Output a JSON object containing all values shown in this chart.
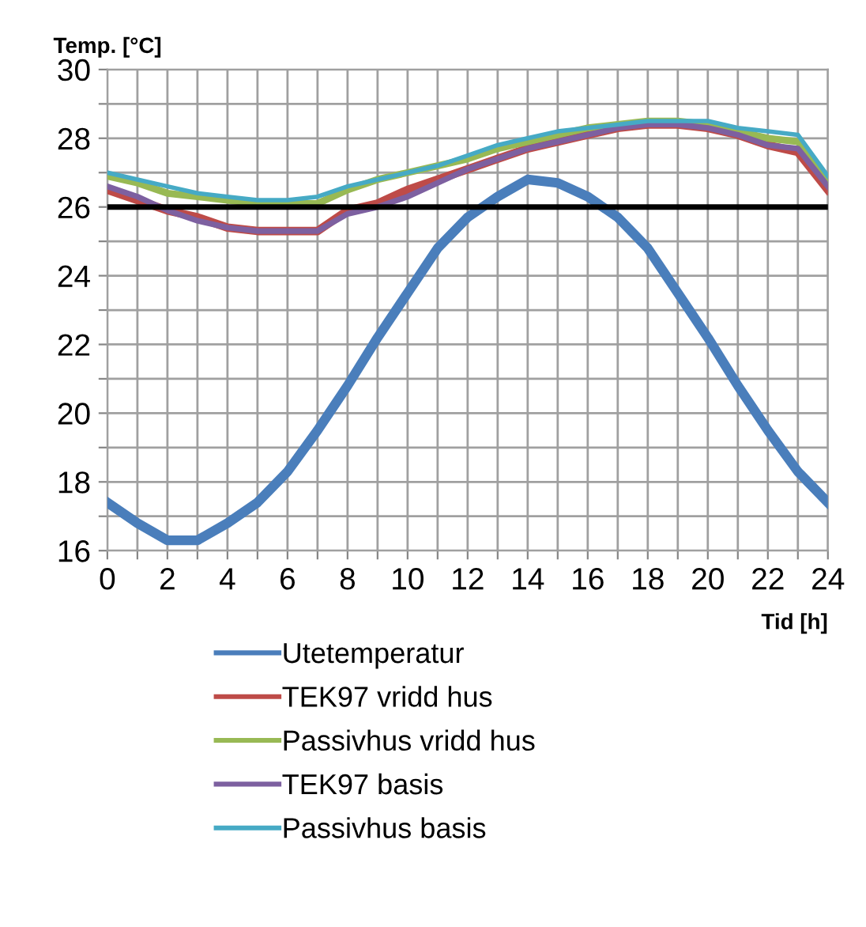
{
  "chart_data": {
    "type": "line",
    "ylabel": "Temp. [°C]",
    "xlabel": "Tid [h]",
    "x": [
      0,
      1,
      2,
      3,
      4,
      5,
      6,
      7,
      8,
      9,
      10,
      11,
      12,
      13,
      14,
      15,
      16,
      17,
      18,
      19,
      20,
      21,
      22,
      23,
      24
    ],
    "xlim": [
      0,
      24
    ],
    "ylim": [
      16,
      30
    ],
    "xticks": [
      0,
      {
        "value": 1,
        "label": null
      },
      2,
      {
        "value": 3,
        "label": null
      },
      4,
      {
        "value": 5,
        "label": null
      },
      6,
      {
        "value": 7,
        "label": null
      },
      8,
      {
        "value": 9,
        "label": null
      },
      10,
      {
        "value": 11,
        "label": null
      },
      12,
      {
        "value": 13,
        "label": null
      },
      14,
      {
        "value": 15,
        "label": null
      },
      16,
      {
        "value": 17,
        "label": null
      },
      18,
      {
        "value": 19,
        "label": null
      },
      20,
      {
        "value": 21,
        "label": null
      },
      22,
      {
        "value": 23,
        "label": null
      },
      24
    ],
    "yticks": [
      16,
      {
        "value": 17,
        "label": null
      },
      18,
      {
        "value": 19,
        "label": null
      },
      20,
      {
        "value": 21,
        "label": null
      },
      22,
      {
        "value": 23,
        "label": null
      },
      24,
      {
        "value": 25,
        "label": null
      },
      26,
      {
        "value": 27,
        "label": null
      },
      28,
      {
        "value": 29,
        "label": null
      },
      30
    ],
    "grid": true,
    "legend": "bottom",
    "marker": "none",
    "line_style": "solid",
    "ref_lines": [
      {
        "axis": "y",
        "value": 26,
        "color": "#000000"
      }
    ],
    "series": [
      {
        "name": "Utetemperatur",
        "color": "#4a7ebb",
        "values": [
          17.4,
          16.8,
          16.3,
          16.3,
          16.8,
          17.4,
          18.3,
          19.5,
          20.8,
          22.2,
          23.5,
          24.8,
          25.7,
          26.3,
          26.8,
          26.7,
          26.3,
          25.7,
          24.8,
          23.5,
          22.2,
          20.8,
          19.5,
          18.3,
          17.4
        ]
      },
      {
        "name": "TEK97 vridd hus",
        "color": "#be4b48",
        "values": [
          26.5,
          26.2,
          25.9,
          25.7,
          25.4,
          25.3,
          25.3,
          25.3,
          25.9,
          26.1,
          26.5,
          26.8,
          27.1,
          27.4,
          27.7,
          27.9,
          28.1,
          28.3,
          28.4,
          28.4,
          28.3,
          28.1,
          27.8,
          27.6,
          26.5
        ]
      },
      {
        "name": "Passivhus vridd hus",
        "color": "#98b954",
        "values": [
          26.9,
          26.7,
          26.4,
          26.3,
          26.2,
          26.1,
          26.1,
          26.1,
          26.5,
          26.8,
          27.0,
          27.2,
          27.4,
          27.7,
          27.9,
          28.1,
          28.3,
          28.4,
          28.5,
          28.5,
          28.4,
          28.2,
          28.0,
          27.9,
          26.8
        ]
      },
      {
        "name": "TEK97 basis",
        "color": "#7d60a0",
        "values": [
          26.6,
          26.3,
          25.9,
          25.6,
          25.4,
          25.3,
          25.3,
          25.3,
          25.8,
          26.0,
          26.3,
          26.7,
          27.1,
          27.4,
          27.7,
          27.9,
          28.1,
          28.3,
          28.4,
          28.4,
          28.3,
          28.1,
          27.8,
          27.7,
          26.6
        ]
      },
      {
        "name": "Passivhus basis",
        "color": "#46aac5",
        "values": [
          27.0,
          26.8,
          26.6,
          26.4,
          26.3,
          26.2,
          26.2,
          26.3,
          26.6,
          26.8,
          27.0,
          27.2,
          27.5,
          27.8,
          28.0,
          28.2,
          28.3,
          28.4,
          28.5,
          28.5,
          28.5,
          28.3,
          28.2,
          28.1,
          26.9
        ]
      }
    ]
  }
}
